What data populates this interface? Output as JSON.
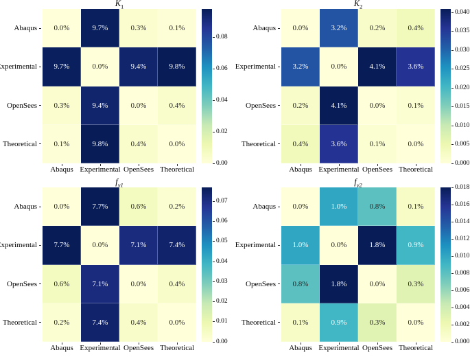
{
  "figure": {
    "background": "#ffffff",
    "text_color": "#000000",
    "tick_color": "#262626",
    "annot_dark_text": "#262626",
    "annot_light_text": "#ffffff",
    "colormap": {
      "name": "YlGnBu",
      "anchors": [
        "#ffffd9",
        "#edf8b1",
        "#c7e9b4",
        "#7fcdbb",
        "#41b6c4",
        "#1d91c0",
        "#225ea8",
        "#253494",
        "#081d58"
      ]
    }
  },
  "chart_data": [
    {
      "type": "heatmap",
      "id": "k1",
      "title": {
        "base": "K",
        "sub": "1",
        "sub_italic": false
      },
      "categories": [
        "Abaqus",
        "Experimental",
        "OpenSees",
        "Theoretical"
      ],
      "x_categories": [
        "Abaqus",
        "Experimental",
        "OpenSees",
        "Theoretical"
      ],
      "values_percent": [
        [
          0.0,
          9.7,
          0.3,
          0.1
        ],
        [
          9.7,
          0.0,
          9.4,
          9.8
        ],
        [
          0.3,
          9.4,
          0.0,
          0.4
        ],
        [
          0.1,
          9.8,
          0.4,
          0.0
        ]
      ],
      "annotation_format": "one-decimal-percent",
      "vmax": 0.098,
      "vmin": 0,
      "colorbar_ticks": [
        "0.00",
        "0.02",
        "0.04",
        "0.06",
        "0.08"
      ]
    },
    {
      "type": "heatmap",
      "id": "k2",
      "title": {
        "base": "K",
        "sub": "2",
        "sub_italic": false
      },
      "categories": [
        "Abaqus",
        "Experimental",
        "OpenSees",
        "Theoretical"
      ],
      "x_categories": [
        "Abaqus",
        "Experimental",
        "OpenSees",
        "Theoretical"
      ],
      "values_percent": [
        [
          0.0,
          3.2,
          0.2,
          0.4
        ],
        [
          3.2,
          0.0,
          4.1,
          3.6
        ],
        [
          0.2,
          4.1,
          0.0,
          0.1
        ],
        [
          0.4,
          3.6,
          0.1,
          0.0
        ]
      ],
      "annotation_format": "one-decimal-percent",
      "vmax": 0.041,
      "vmin": 0,
      "colorbar_ticks": [
        "0.000",
        "0.005",
        "0.010",
        "0.015",
        "0.020",
        "0.025",
        "0.030",
        "0.035",
        "0.040"
      ]
    },
    {
      "type": "heatmap",
      "id": "fy1",
      "title": {
        "base": "f",
        "sub": "y1",
        "sub_italic": true
      },
      "categories": [
        "Abaqus",
        "Experimental",
        "OpenSees",
        "Theoretical"
      ],
      "x_categories": [
        "Abaqus",
        "Experimental",
        "OpenSees",
        "Theoretical"
      ],
      "values_percent": [
        [
          0.0,
          7.7,
          0.6,
          0.2
        ],
        [
          7.7,
          0.0,
          7.1,
          7.4
        ],
        [
          0.6,
          7.1,
          0.0,
          0.4
        ],
        [
          0.2,
          7.4,
          0.4,
          0.0
        ]
      ],
      "annotation_format": "one-decimal-percent",
      "vmax": 0.077,
      "vmin": 0,
      "colorbar_ticks": [
        "0.00",
        "0.01",
        "0.02",
        "0.03",
        "0.04",
        "0.05",
        "0.06",
        "0.07"
      ]
    },
    {
      "type": "heatmap",
      "id": "fy2",
      "title": {
        "base": "f",
        "sub": "y2",
        "sub_italic": true
      },
      "categories": [
        "Abaqus",
        "Experimental",
        "OpenSees",
        "Theoretical"
      ],
      "x_categories": [
        "Abaqus",
        "Experimental",
        "OpenSees",
        "Theoretical"
      ],
      "values_percent": [
        [
          0.0,
          1.0,
          0.8,
          0.1
        ],
        [
          1.0,
          0.0,
          1.8,
          0.9
        ],
        [
          0.8,
          1.8,
          0.0,
          0.3
        ],
        [
          0.1,
          0.9,
          0.3,
          0.0
        ]
      ],
      "annotation_format": "one-decimal-percent",
      "vmax": 0.018,
      "vmin": 0,
      "colorbar_ticks": [
        "0.000",
        "0.002",
        "0.004",
        "0.006",
        "0.008",
        "0.010",
        "0.012",
        "0.014",
        "0.016",
        "0.018"
      ]
    }
  ]
}
